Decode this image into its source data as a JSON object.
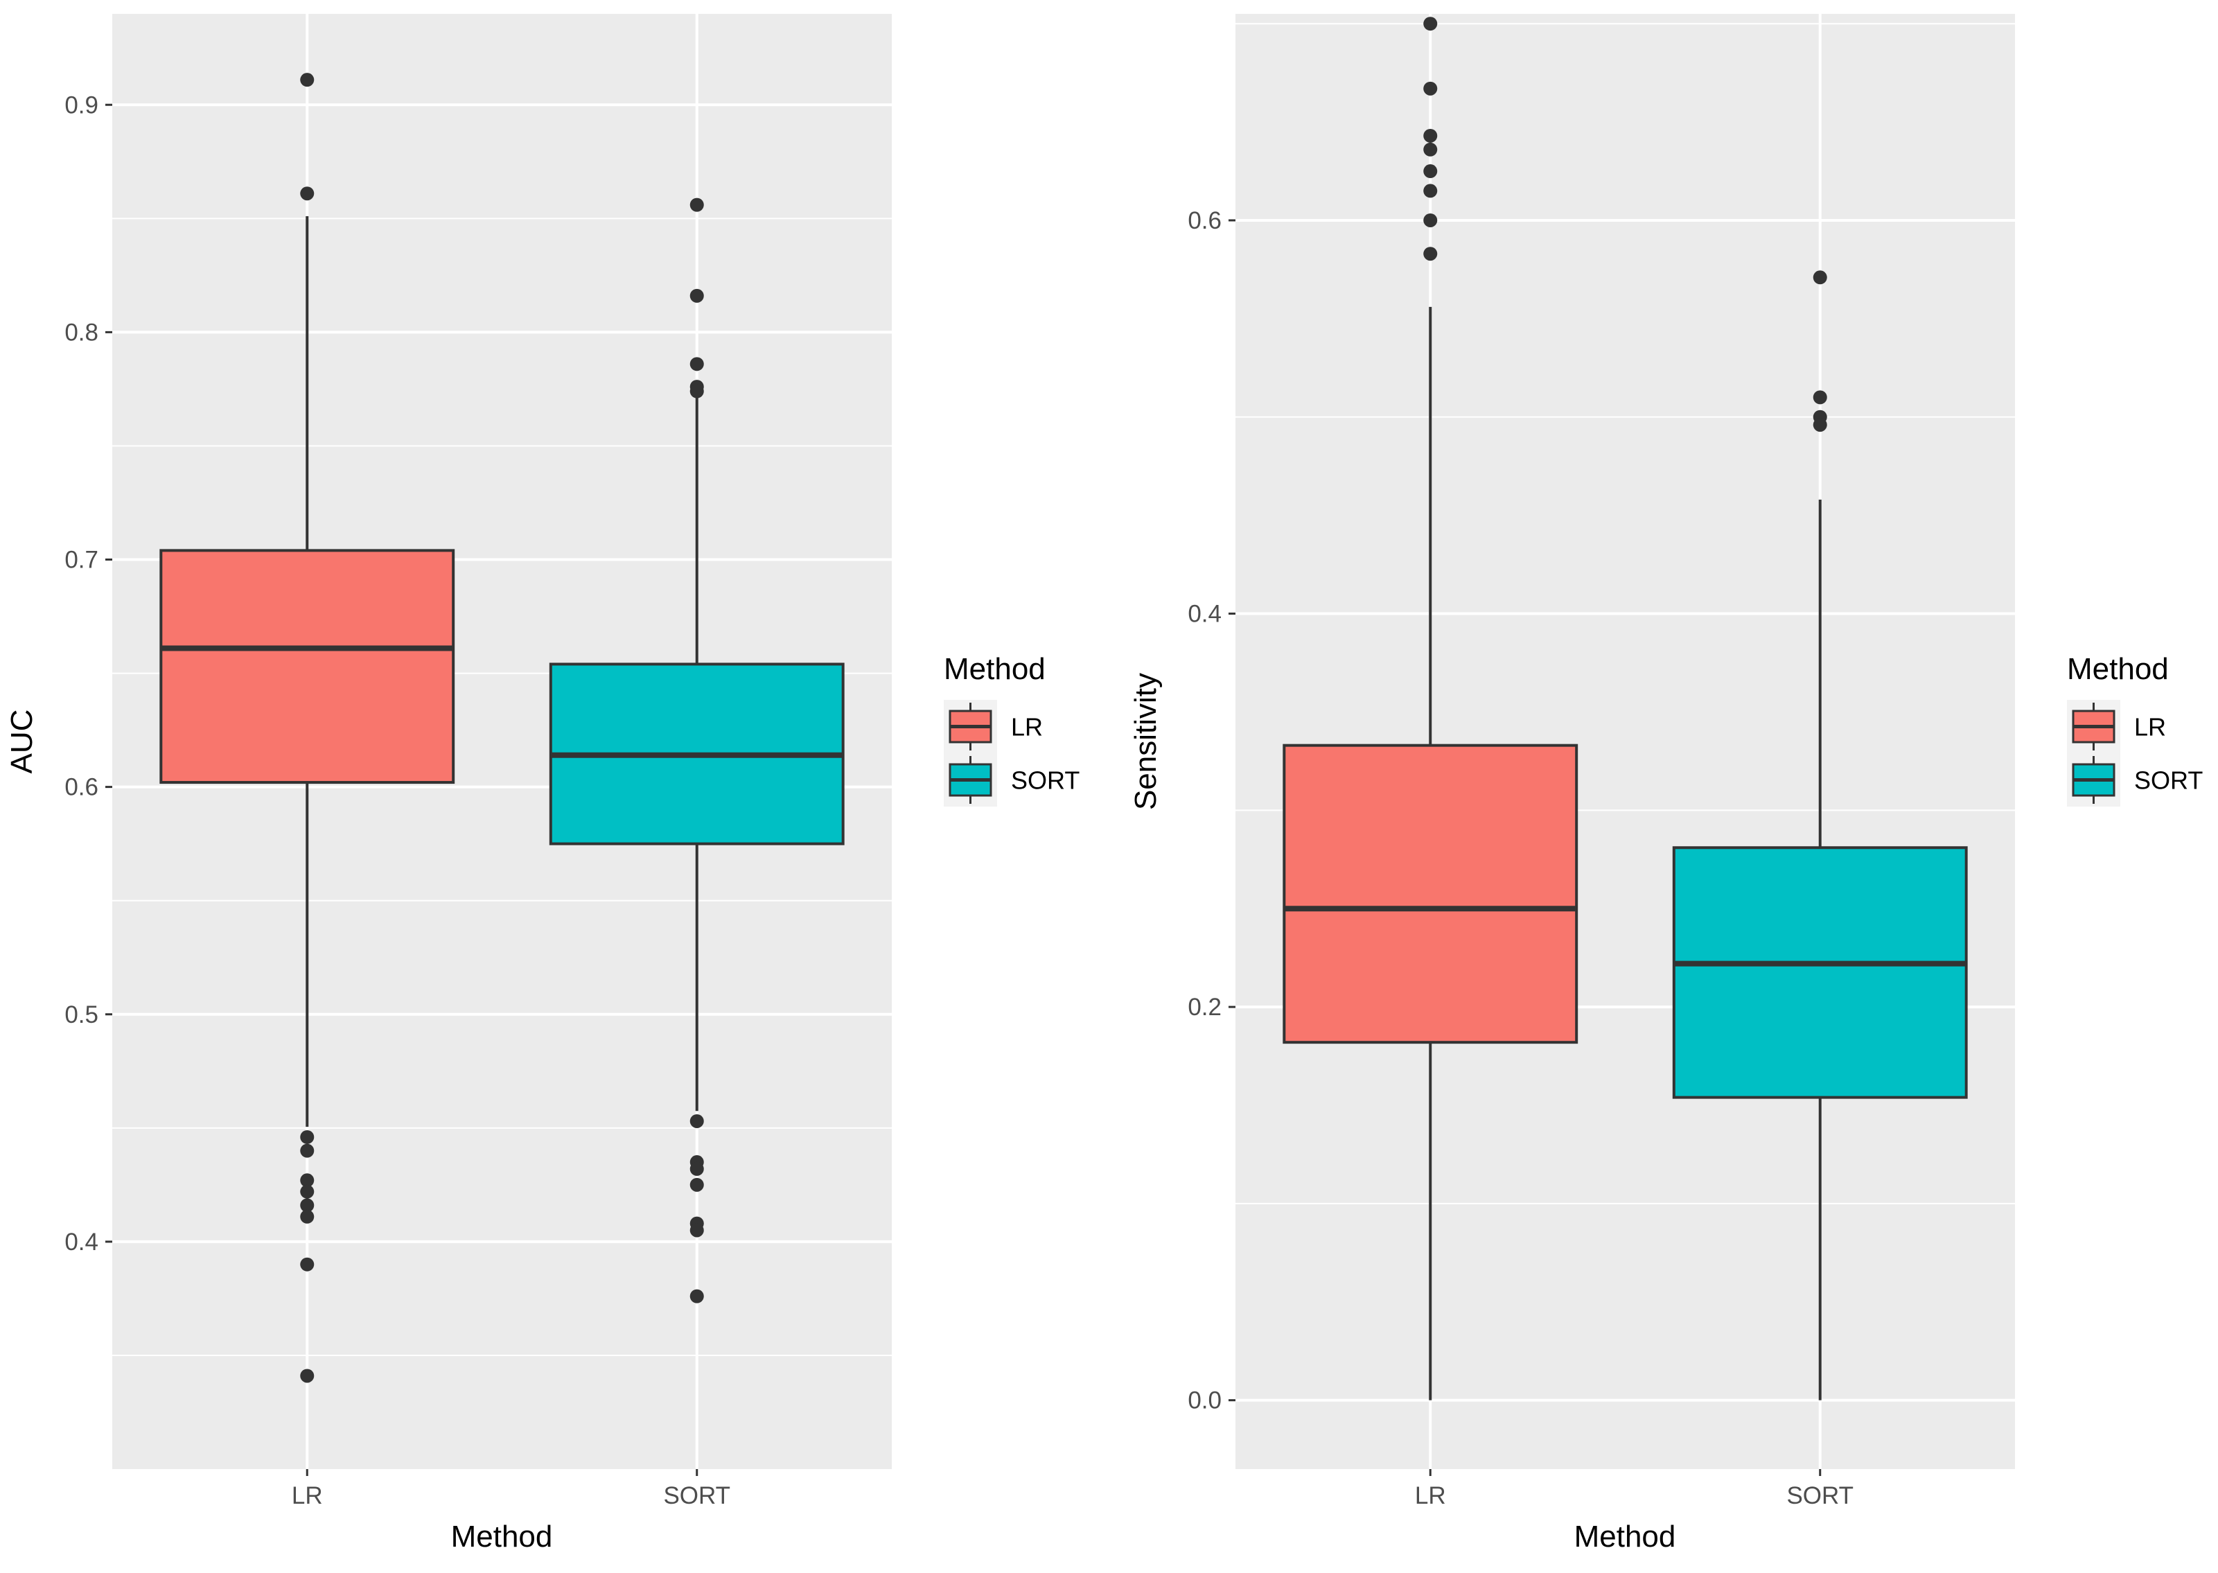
{
  "chart_data": [
    {
      "type": "boxplot",
      "xlabel": "Method",
      "ylabel": "AUC",
      "categories": [
        "LR",
        "SORT"
      ],
      "ylim": [
        0.3,
        0.94
      ],
      "yticks": [
        0.4,
        0.5,
        0.6,
        0.7,
        0.8,
        0.9
      ],
      "ytick_labels": [
        "0.4",
        "0.5",
        "0.6",
        "0.7",
        "0.8",
        "0.9"
      ],
      "grid": true,
      "legend": {
        "title": "Method",
        "position": "right",
        "entries": [
          "LR",
          "SORT"
        ]
      },
      "boxes": [
        {
          "category": "LR",
          "color": "#F8766D",
          "q1": 0.602,
          "median": 0.661,
          "q3": 0.704,
          "whisker_low": 0.4505,
          "whisker_high": 0.851,
          "outliers": [
            0.911,
            0.861,
            0.446,
            0.44,
            0.427,
            0.422,
            0.416,
            0.411,
            0.39,
            0.341
          ]
        },
        {
          "category": "SORT",
          "color": "#00BFC4",
          "q1": 0.575,
          "median": 0.614,
          "q3": 0.654,
          "whisker_low": 0.4575,
          "whisker_high": 0.772,
          "outliers": [
            0.856,
            0.816,
            0.786,
            0.776,
            0.774,
            0.453,
            0.435,
            0.432,
            0.425,
            0.408,
            0.405,
            0.376
          ]
        }
      ]
    },
    {
      "type": "boxplot",
      "xlabel": "Method",
      "ylabel": "Sensitivity",
      "categories": [
        "LR",
        "SORT"
      ],
      "ylim": [
        -0.035,
        0.705
      ],
      "yticks": [
        0.0,
        0.2,
        0.4,
        0.6
      ],
      "ytick_labels": [
        "0.0",
        "0.2",
        "0.4",
        "0.6"
      ],
      "grid": true,
      "legend": {
        "title": "Method",
        "position": "right",
        "entries": [
          "LR",
          "SORT"
        ]
      },
      "boxes": [
        {
          "category": "LR",
          "color": "#F8766D",
          "q1": 0.182,
          "median": 0.25,
          "q3": 0.333,
          "whisker_low": 0.0,
          "whisker_high": 0.556,
          "outliers": [
            0.7,
            0.667,
            0.643,
            0.636,
            0.625,
            0.615,
            0.6,
            0.583
          ]
        },
        {
          "category": "SORT",
          "color": "#00BFC4",
          "q1": 0.154,
          "median": 0.222,
          "q3": 0.281,
          "whisker_low": 0.0,
          "whisker_high": 0.458,
          "outliers": [
            0.571,
            0.51,
            0.5,
            0.496
          ]
        }
      ]
    }
  ]
}
